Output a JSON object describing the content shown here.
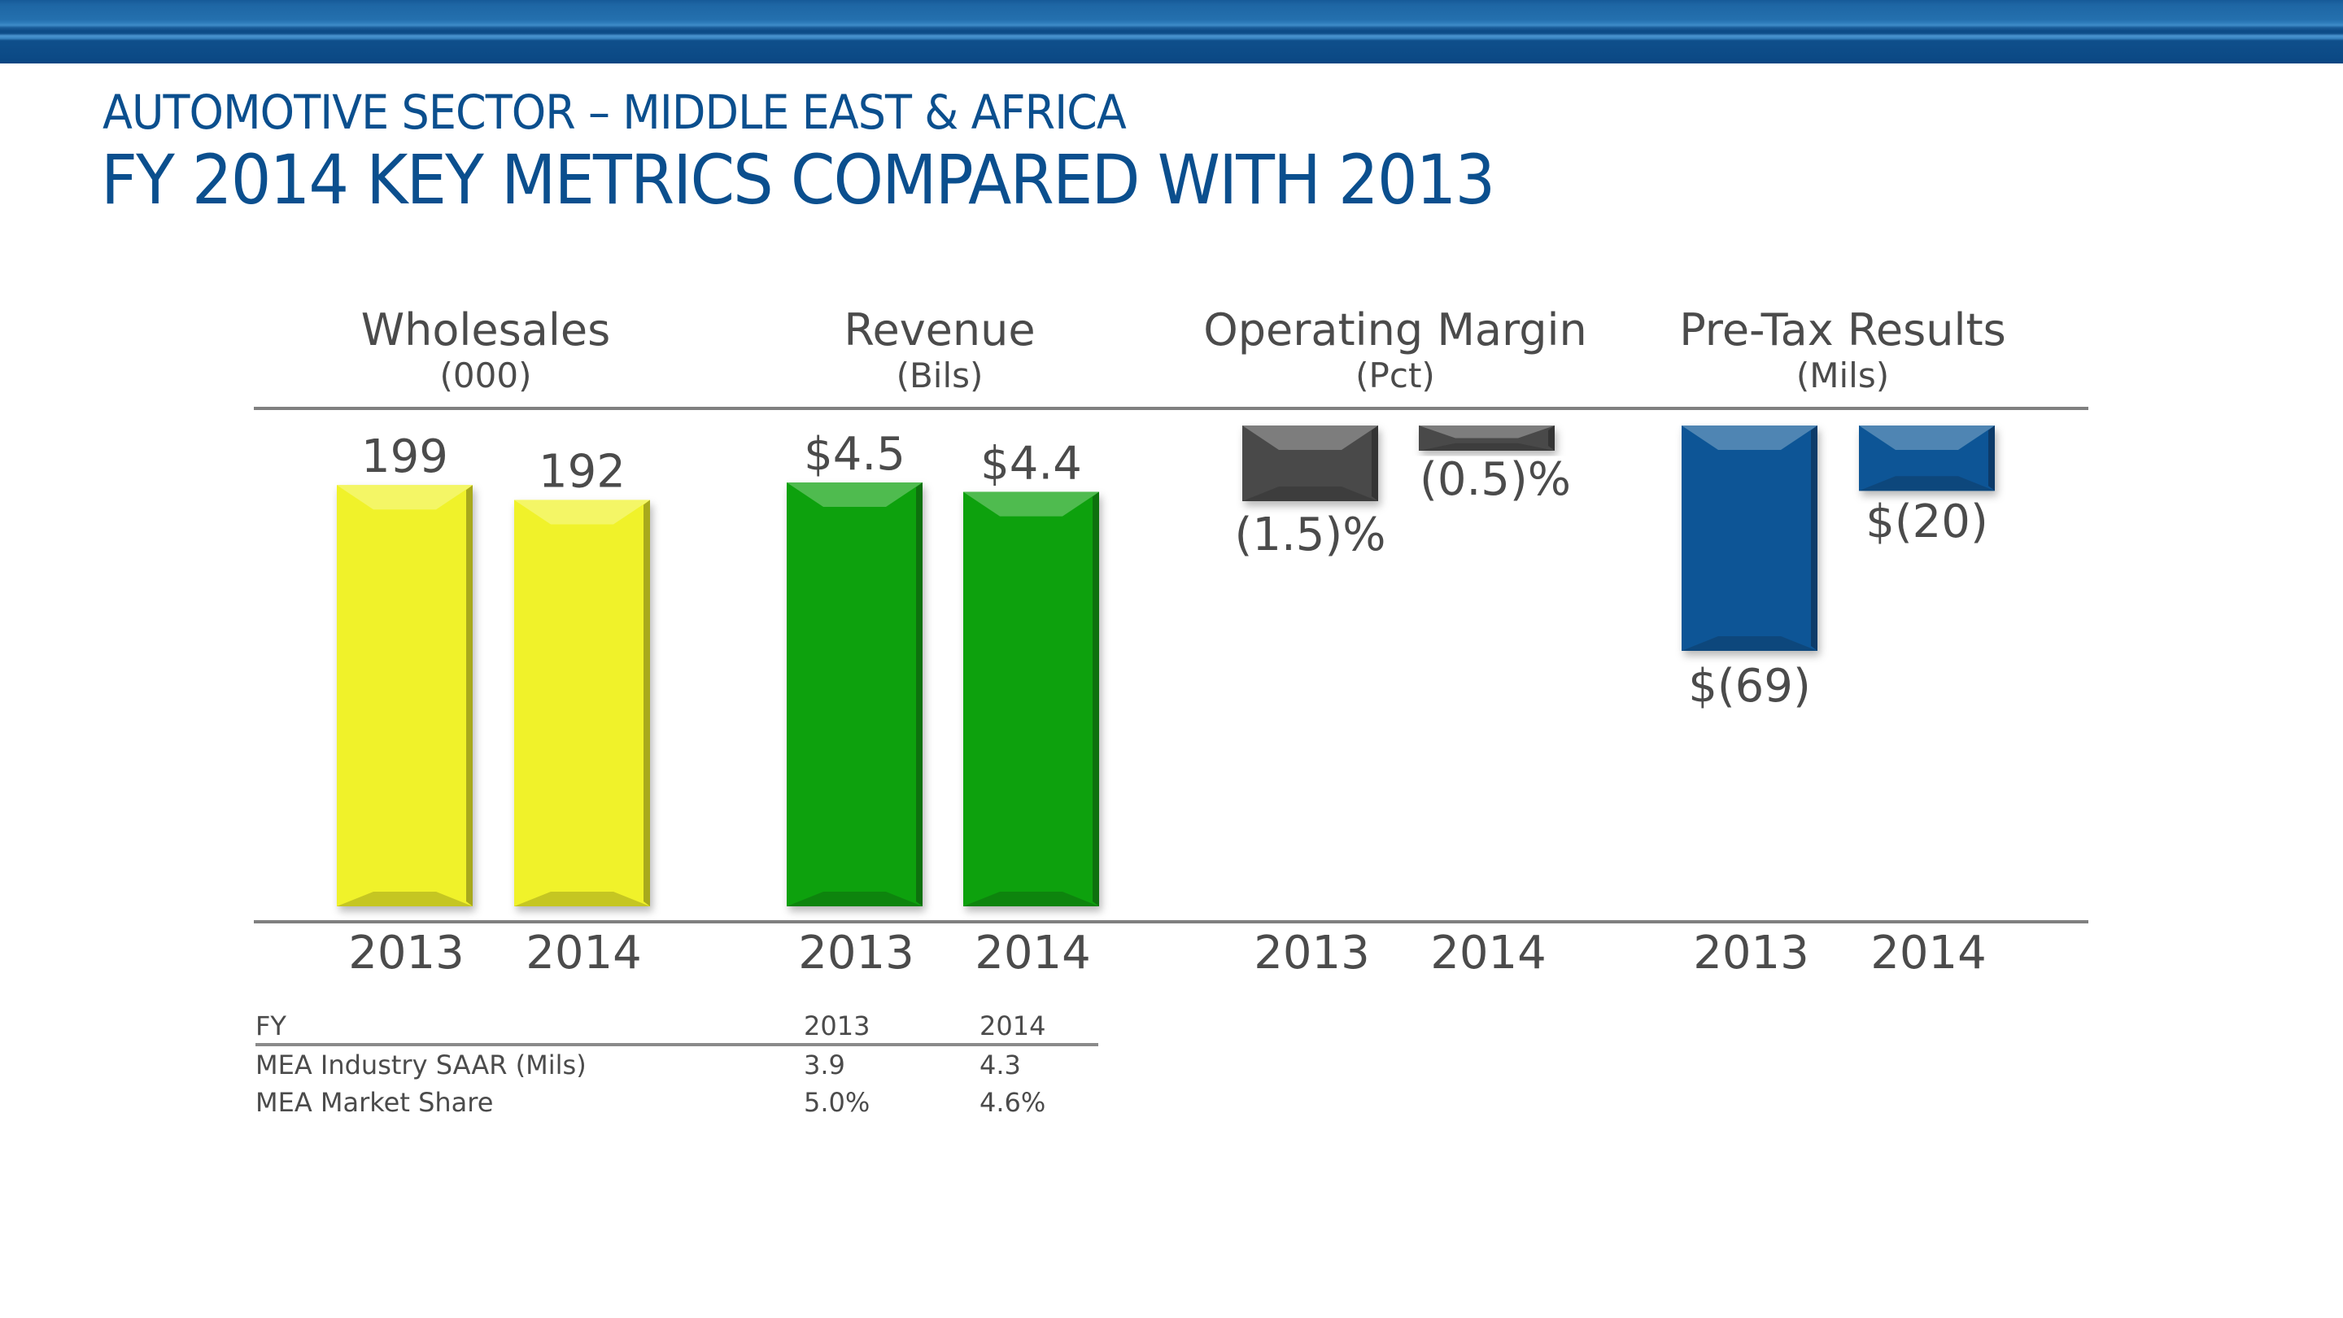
{
  "header": {
    "subtitle": "AUTOMOTIVE SECTOR – MIDDLE EAST & AFRICA",
    "title": "FY 2014 KEY METRICS COMPARED WITH 2013"
  },
  "colors": {
    "brand_blue": "#0b4f8e",
    "wholesales": "#f0f22a",
    "revenue": "#0aa10a",
    "operating_margin": "#4a4a4a",
    "pretax": "#0b5596",
    "text": "#4b4b4b",
    "axis": "#808080"
  },
  "chart_data": [
    {
      "type": "bar",
      "title": "Wholesales",
      "unit": "(000)",
      "categories": [
        "2013",
        "2014"
      ],
      "values": [
        199,
        192
      ],
      "labels": [
        "199",
        "192"
      ],
      "color_key": "wholesales"
    },
    {
      "type": "bar",
      "title": "Revenue",
      "unit": "(Bils)",
      "categories": [
        "2013",
        "2014"
      ],
      "values": [
        4.5,
        4.4
      ],
      "labels": [
        "$4.5",
        "$4.4"
      ],
      "color_key": "revenue"
    },
    {
      "type": "bar",
      "title": "Operating Margin",
      "unit": "(Pct)",
      "categories": [
        "2013",
        "2014"
      ],
      "values": [
        -1.5,
        -0.5
      ],
      "labels": [
        "(1.5)%",
        "(0.5)%"
      ],
      "color_key": "operating_margin"
    },
    {
      "type": "bar",
      "title": "Pre-Tax Results",
      "unit": "(Mils)",
      "categories": [
        "2013",
        "2014"
      ],
      "values": [
        -69,
        -20
      ],
      "labels": [
        "$(69)",
        "$(20)"
      ],
      "color_key": "pretax"
    }
  ],
  "table": {
    "headers": [
      "FY",
      "2013",
      "2014"
    ],
    "rows": [
      [
        "MEA Industry SAAR (Mils)",
        "3.9",
        "4.3"
      ],
      [
        "MEA Market Share",
        "5.0%",
        "4.6%"
      ]
    ]
  }
}
